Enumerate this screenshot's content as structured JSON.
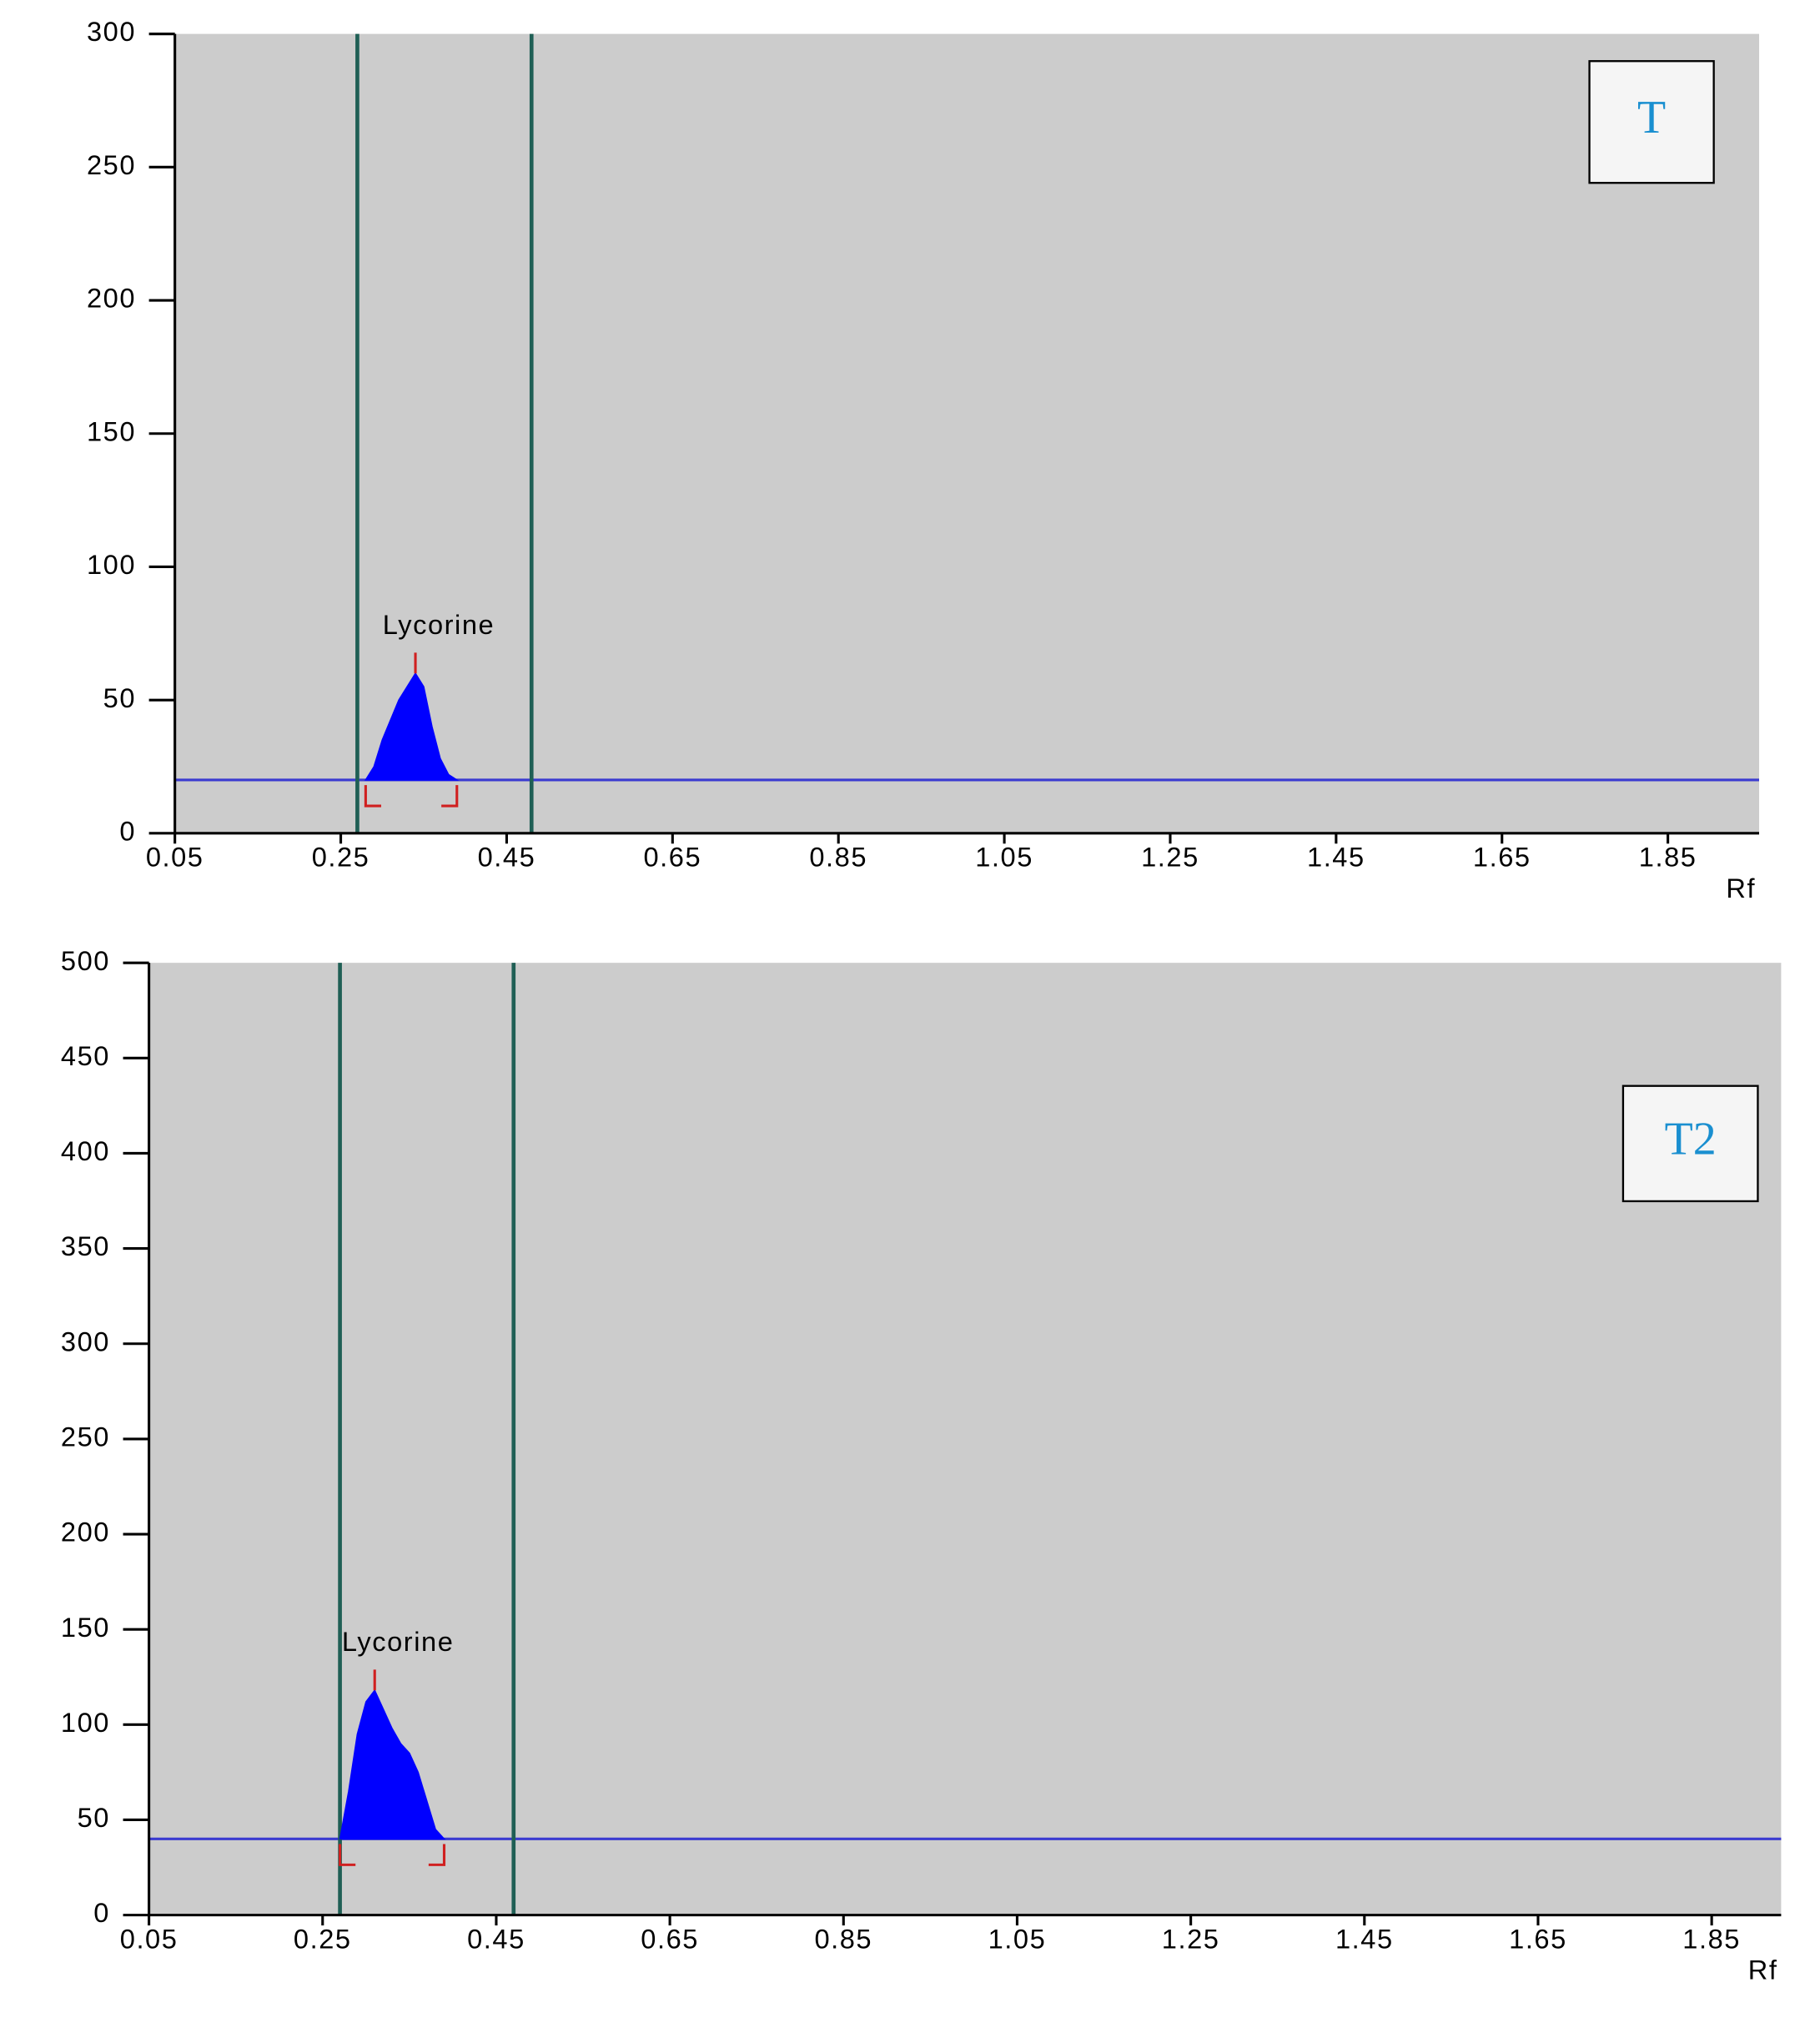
{
  "chart_data": [
    {
      "type": "area",
      "box_label": "T",
      "x_label": "Rf",
      "peak_label": "Lycorine",
      "x": [
        0.28,
        0.29,
        0.3,
        0.32,
        0.34,
        0.35,
        0.36,
        0.37,
        0.38,
        0.39
      ],
      "values": [
        20,
        25,
        35,
        50,
        60,
        55,
        40,
        28,
        22,
        20
      ],
      "color": "#0000ff",
      "baseline": 20,
      "baseline_color": "#3a3ad0",
      "vlines": [
        0.27,
        0.48
      ],
      "vline_color": "#1f5f55",
      "background": "#cccccc",
      "xlim": [
        0.05,
        1.96
      ],
      "xticks": [
        0.05,
        0.25,
        0.45,
        0.65,
        0.85,
        1.05,
        1.25,
        1.45,
        1.65,
        1.85
      ],
      "ylim": [
        0,
        300
      ],
      "yticks": [
        0,
        50,
        100,
        150,
        200,
        250,
        300
      ],
      "grid": false
    },
    {
      "type": "area",
      "box_label": "T2",
      "x_label": "Rf",
      "peak_label": "Lycorine",
      "x": [
        0.27,
        0.28,
        0.29,
        0.3,
        0.31,
        0.32,
        0.33,
        0.34,
        0.35,
        0.36,
        0.37,
        0.38,
        0.39
      ],
      "values": [
        40,
        65,
        95,
        112,
        118,
        108,
        98,
        90,
        85,
        75,
        60,
        45,
        40
      ],
      "color": "#0000ff",
      "baseline": 40,
      "baseline_color": "#3a3ad0",
      "vlines": [
        0.27,
        0.47
      ],
      "vline_color": "#1f5f55",
      "background": "#cccccc",
      "xlim": [
        0.05,
        1.93
      ],
      "xticks": [
        0.05,
        0.25,
        0.45,
        0.65,
        0.85,
        1.05,
        1.25,
        1.45,
        1.65,
        1.85
      ],
      "ylim": [
        0,
        500
      ],
      "yticks": [
        0,
        50,
        100,
        150,
        200,
        250,
        300,
        350,
        400,
        450,
        500
      ],
      "grid": false
    }
  ]
}
